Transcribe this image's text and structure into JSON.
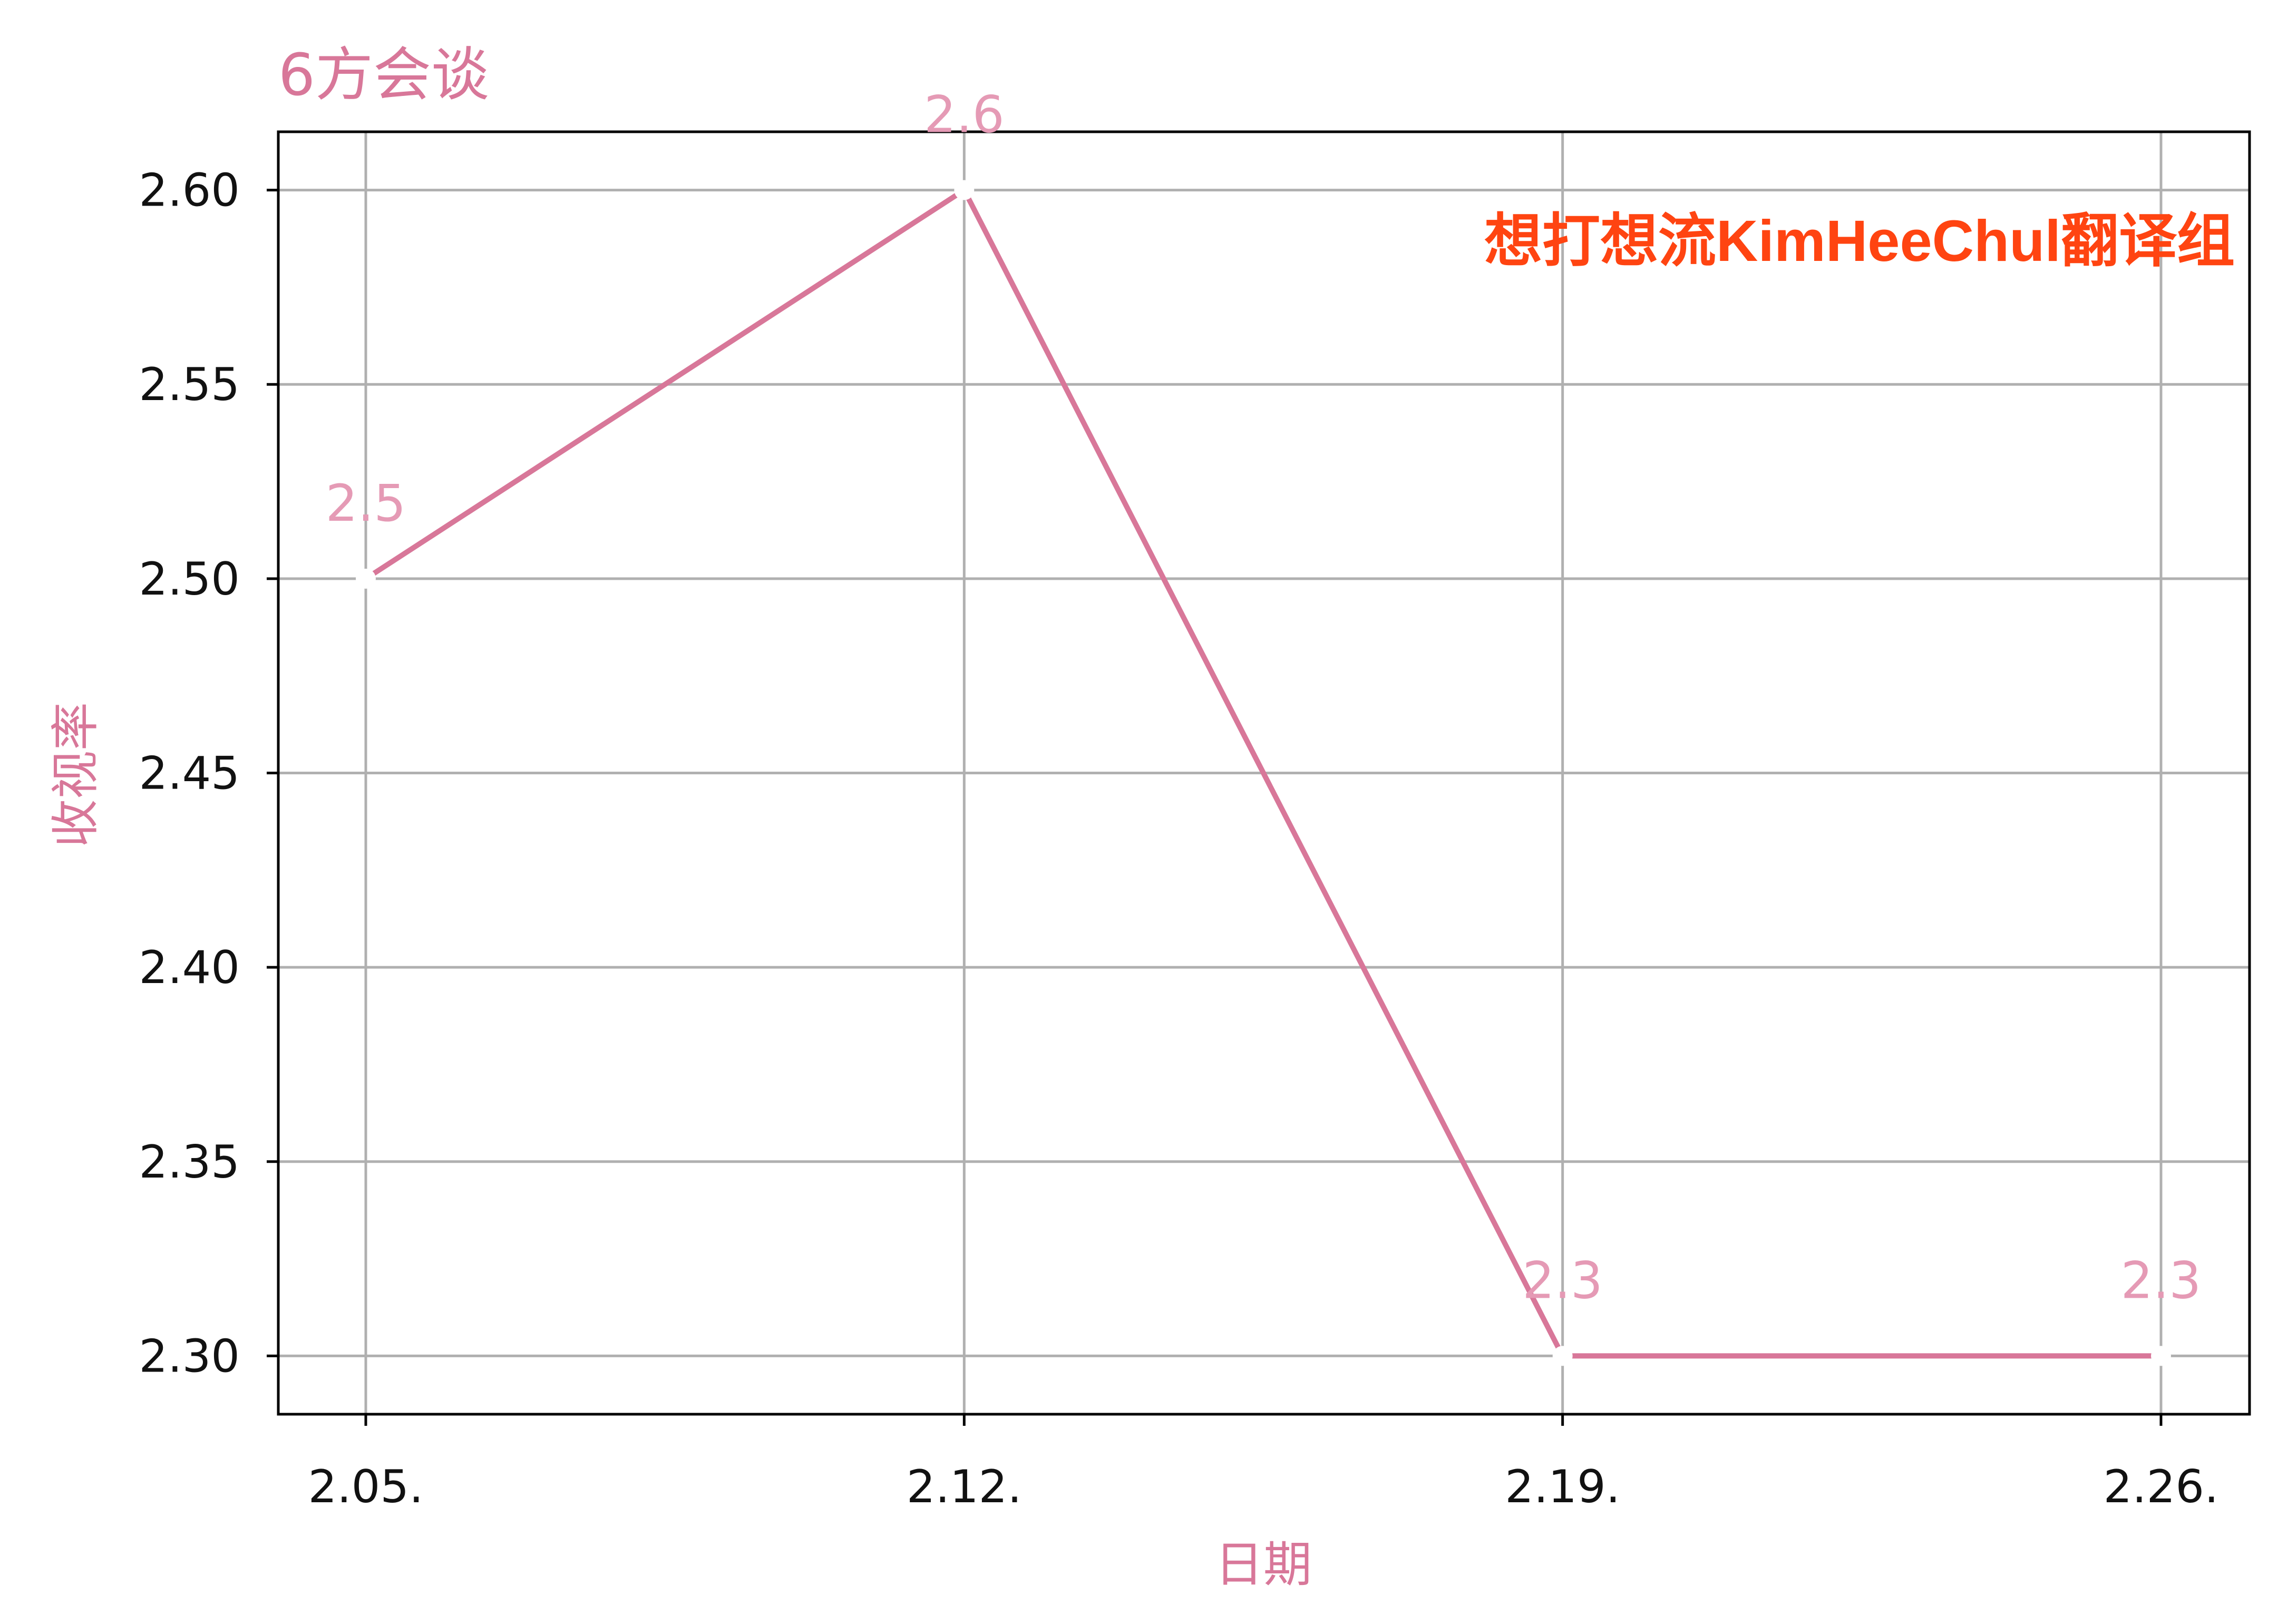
{
  "chart_data": {
    "type": "line",
    "title": "6方会谈",
    "xlabel": "日期",
    "ylabel": "收视率",
    "categories": [
      "2.05.",
      "2.12.",
      "2.19.",
      "2.26."
    ],
    "series": [
      {
        "values": [
          2.5,
          2.6,
          2.3,
          2.3
        ]
      }
    ],
    "data_labels": [
      "2.5",
      "2.6",
      "2.3",
      "2.3"
    ],
    "yticks": [
      "2.30",
      "2.35",
      "2.40",
      "2.45",
      "2.50",
      "2.55",
      "2.60"
    ],
    "ytick_values": [
      2.3,
      2.35,
      2.4,
      2.45,
      2.5,
      2.55,
      2.6
    ],
    "ylim": [
      2.285,
      2.615
    ],
    "grid": true,
    "legend": "none",
    "watermark": "想打想流KimHeeChul翻译组",
    "colors": {
      "line": "#D87799",
      "title": "#D87799",
      "axis_label": "#D87799",
      "data_label": "#E59AB5",
      "watermark": "#FF4411",
      "grid": "#B0B0B0",
      "axis": "#000000"
    }
  }
}
